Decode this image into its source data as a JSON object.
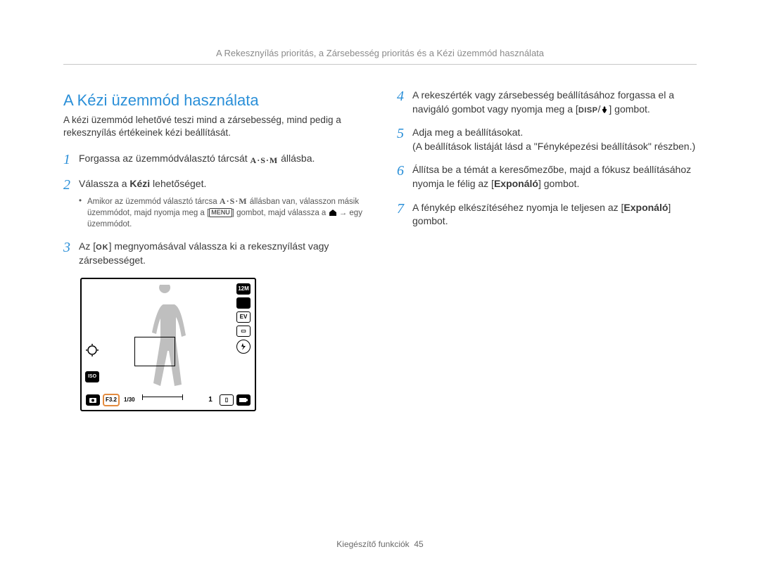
{
  "running_head": "A Rekesznyílás prioritás, a Zársebesség prioritás és a Kézi üzemmód használata",
  "section_title": "A Kézi üzemmód használata",
  "intro": "A kézi üzemmód lehetővé teszi mind a zársebesség, mind pedig a rekesznyílás értékeinek kézi beállítását.",
  "steps_left": [
    {
      "n": "1",
      "pre": "Forgassa az üzemmódválasztó tárcsát ",
      "post": " állásba.",
      "icon": "asm"
    },
    {
      "n": "2",
      "html": "Válassza a <b>Kézi</b> lehetőséget.",
      "sub_icon": true
    },
    {
      "n": "3",
      "pre": "Az [",
      "mid": "] megnyomásával válassza ki a rekesznyílást vagy zársebességet.",
      "icon": "ok"
    }
  ],
  "sub_text_a": "Amikor az üzemmód választó tárcsa ",
  "sub_text_b": " állásban van, válasszon másik üzemmódot, majd nyomja meg a [",
  "sub_text_c": "] gombot, majd válassza a ",
  "sub_text_d": " → egy üzemmódot.",
  "steps_right": [
    {
      "n": "4",
      "pre": "A rekeszérték vagy zársebesség beállításához forgassa el a navigáló gombot vagy nyomja meg a [",
      "post": "] gombot.",
      "icon": "disp"
    },
    {
      "n": "5",
      "text": "Adja meg a beállításokat.",
      "note": "(A beállítások listáját lásd a \"Fényképezési beállítások\" részben.)"
    },
    {
      "n": "6",
      "html": "Állítsa be a témát a keresőmezőbe, majd a fókusz beállításához nyomja le félig az [<b>Exponáló</b>] gombot."
    },
    {
      "n": "7",
      "html": "A fénykép elkészítéséhez nyomja le teljesen az [<b>Exponáló</b>] gombot."
    }
  ],
  "lcd": {
    "right_icons": [
      "12M",
      "",
      "EV",
      "",
      "⚡"
    ],
    "f_value": "F3.2",
    "shutter": "1/30",
    "count": "1"
  },
  "footer_label": "Kiegészítő funkciók",
  "footer_page": "45"
}
